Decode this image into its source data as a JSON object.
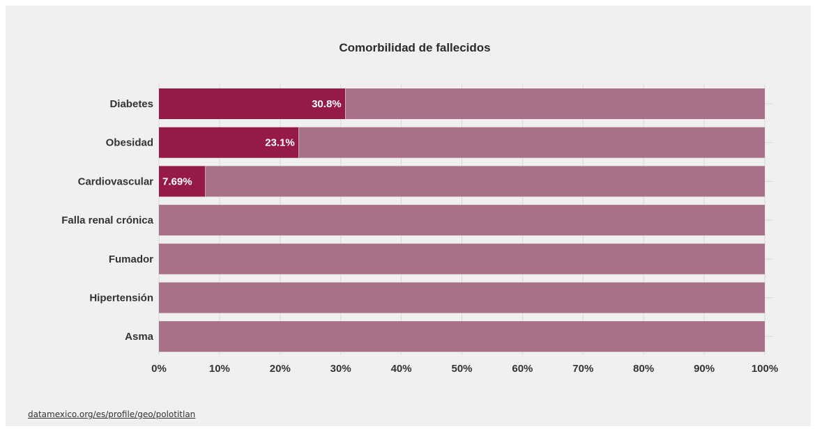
{
  "chart_data": {
    "type": "bar",
    "orientation": "horizontal",
    "stacked": "100%",
    "title": "Comorbilidad de fallecidos",
    "categories": [
      "Diabetes",
      "Obesidad",
      "Cardiovascular",
      "Falla renal crónica",
      "Fumador",
      "Hipertensión",
      "Asma"
    ],
    "series": [
      {
        "name": "",
        "values": [
          30.8,
          23.1,
          7.69,
          0,
          0,
          0,
          0
        ],
        "labels": [
          "30.8%",
          "23.1%",
          "7.69%",
          "",
          "",
          "",
          ""
        ],
        "color": "#951a48"
      },
      {
        "name": "",
        "values": [
          69.2,
          76.9,
          92.31,
          100,
          100,
          100,
          100
        ],
        "color": "#a97189"
      }
    ],
    "xlim": [
      0,
      100
    ],
    "xticks": [
      "0%",
      "10%",
      "20%",
      "30%",
      "40%",
      "50%",
      "60%",
      "70%",
      "80%",
      "90%",
      "100%"
    ],
    "grid": true,
    "xlabel": "",
    "ylabel": ""
  },
  "footer": {
    "source_text": "datamexico.org/es/profile/geo/polotitlan"
  },
  "colors": {
    "background": "#f0f0f0",
    "primary": "#951a48",
    "remainder": "#a97189",
    "grid": "#d9d9d9"
  }
}
